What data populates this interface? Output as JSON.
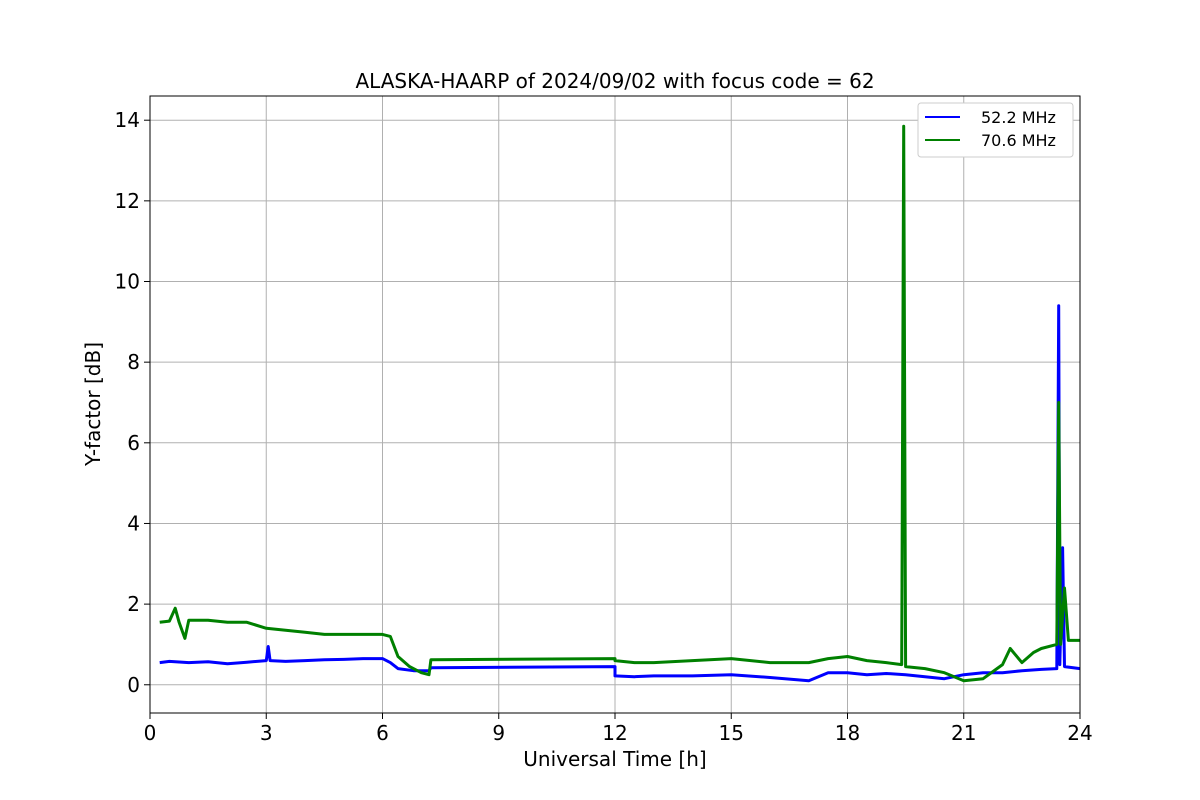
{
  "chart_data": {
    "type": "line",
    "title": "ALASKA-HAARP of 2024/09/02 with focus code = 62",
    "xlabel": "Universal Time [h]",
    "ylabel": "Y-factor [dB]",
    "xlim": [
      0,
      24
    ],
    "ylim": [
      -0.7,
      14.6
    ],
    "xticks": [
      0,
      3,
      6,
      9,
      12,
      15,
      18,
      21,
      24
    ],
    "yticks": [
      0,
      2,
      4,
      6,
      8,
      10,
      12,
      14
    ],
    "grid": true,
    "legend_position": "top-right",
    "series": [
      {
        "name": "52.2 MHz",
        "color": "#0000ff",
        "points": [
          [
            0.25,
            0.55
          ],
          [
            0.5,
            0.58
          ],
          [
            1.0,
            0.55
          ],
          [
            1.5,
            0.57
          ],
          [
            2.0,
            0.52
          ],
          [
            2.5,
            0.56
          ],
          [
            3.0,
            0.6
          ],
          [
            3.05,
            0.95
          ],
          [
            3.1,
            0.6
          ],
          [
            3.5,
            0.58
          ],
          [
            4.0,
            0.6
          ],
          [
            4.5,
            0.62
          ],
          [
            5.0,
            0.63
          ],
          [
            5.5,
            0.65
          ],
          [
            6.0,
            0.65
          ],
          [
            6.2,
            0.55
          ],
          [
            6.4,
            0.4
          ],
          [
            6.8,
            0.35
          ],
          [
            7.2,
            0.35
          ],
          [
            7.25,
            0.42
          ],
          [
            12.0,
            0.45
          ],
          [
            12.0,
            0.22
          ],
          [
            12.5,
            0.2
          ],
          [
            13.0,
            0.22
          ],
          [
            14.0,
            0.22
          ],
          [
            15.0,
            0.25
          ],
          [
            16.0,
            0.18
          ],
          [
            17.0,
            0.1
          ],
          [
            17.5,
            0.3
          ],
          [
            18.0,
            0.3
          ],
          [
            18.5,
            0.25
          ],
          [
            19.0,
            0.28
          ],
          [
            19.5,
            0.25
          ],
          [
            20.0,
            0.2
          ],
          [
            20.5,
            0.15
          ],
          [
            21.0,
            0.25
          ],
          [
            21.5,
            0.3
          ],
          [
            22.0,
            0.3
          ],
          [
            22.5,
            0.35
          ],
          [
            23.0,
            0.38
          ],
          [
            23.4,
            0.4
          ],
          [
            23.45,
            9.4
          ],
          [
            23.48,
            0.5
          ],
          [
            23.55,
            3.4
          ],
          [
            23.6,
            0.45
          ],
          [
            24.0,
            0.4
          ]
        ]
      },
      {
        "name": "70.6 MHz",
        "color": "#008000",
        "points": [
          [
            0.25,
            1.55
          ],
          [
            0.5,
            1.58
          ],
          [
            0.65,
            1.9
          ],
          [
            0.75,
            1.55
          ],
          [
            0.9,
            1.15
          ],
          [
            1.0,
            1.6
          ],
          [
            1.5,
            1.6
          ],
          [
            2.0,
            1.55
          ],
          [
            2.5,
            1.55
          ],
          [
            3.0,
            1.4
          ],
          [
            3.5,
            1.35
          ],
          [
            4.0,
            1.3
          ],
          [
            4.5,
            1.25
          ],
          [
            5.0,
            1.25
          ],
          [
            5.5,
            1.25
          ],
          [
            6.0,
            1.25
          ],
          [
            6.2,
            1.2
          ],
          [
            6.4,
            0.7
          ],
          [
            6.7,
            0.45
          ],
          [
            7.0,
            0.3
          ],
          [
            7.2,
            0.25
          ],
          [
            7.25,
            0.62
          ],
          [
            12.0,
            0.65
          ],
          [
            12.0,
            0.6
          ],
          [
            12.5,
            0.55
          ],
          [
            13.0,
            0.55
          ],
          [
            14.0,
            0.6
          ],
          [
            15.0,
            0.65
          ],
          [
            16.0,
            0.55
          ],
          [
            17.0,
            0.55
          ],
          [
            17.5,
            0.65
          ],
          [
            18.0,
            0.7
          ],
          [
            18.5,
            0.6
          ],
          [
            19.0,
            0.55
          ],
          [
            19.4,
            0.5
          ],
          [
            19.45,
            13.85
          ],
          [
            19.5,
            0.45
          ],
          [
            20.0,
            0.4
          ],
          [
            20.5,
            0.3
          ],
          [
            21.0,
            0.1
          ],
          [
            21.5,
            0.15
          ],
          [
            22.0,
            0.5
          ],
          [
            22.2,
            0.9
          ],
          [
            22.5,
            0.55
          ],
          [
            22.8,
            0.8
          ],
          [
            23.0,
            0.9
          ],
          [
            23.4,
            1.0
          ],
          [
            23.45,
            7.0
          ],
          [
            23.5,
            1.0
          ],
          [
            23.6,
            2.4
          ],
          [
            23.7,
            1.1
          ],
          [
            24.0,
            1.1
          ]
        ]
      }
    ]
  }
}
